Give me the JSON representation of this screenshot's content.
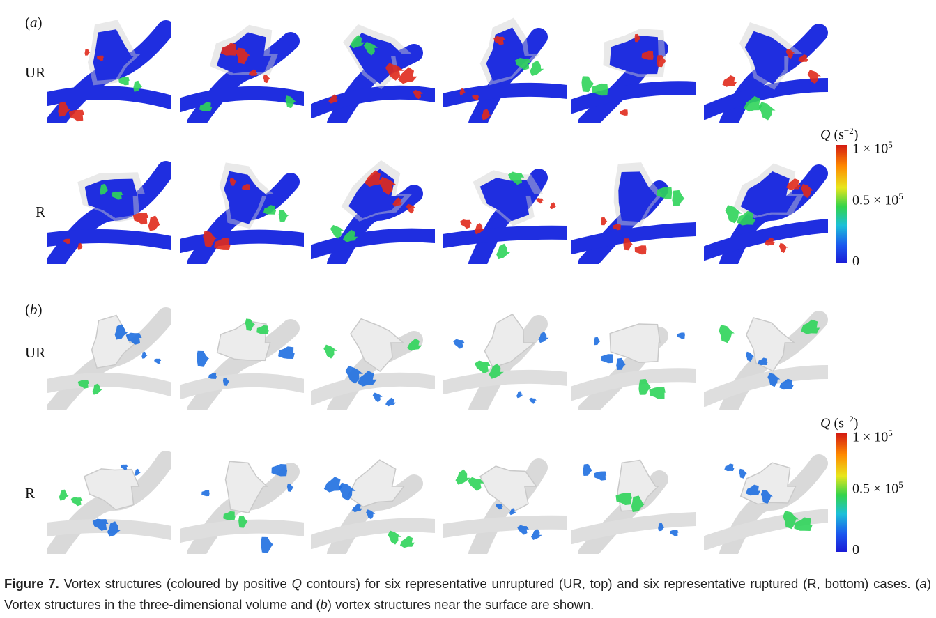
{
  "panels": {
    "a": {
      "label_open": "(",
      "label_letter": "a",
      "label_close": ")",
      "rows": [
        "UR",
        "R"
      ],
      "colorbar": {
        "q_symbol": "Q",
        "unit": "(s",
        "unit_exp": "−2",
        "unit_close": ")",
        "tick_max": "1 × 10",
        "tick_max_exp": "5",
        "tick_mid": "0.5 × 10",
        "tick_mid_exp": "5",
        "tick_min": "0"
      }
    },
    "b": {
      "label_open": "(",
      "label_letter": "b",
      "label_close": ")",
      "rows": [
        "UR",
        "R"
      ],
      "colorbar": {
        "q_symbol": "Q",
        "unit": "(s",
        "unit_exp": "−2",
        "unit_close": ")",
        "tick_max": "1 × 10",
        "tick_max_exp": "5",
        "tick_mid": "0.5 × 10",
        "tick_mid_exp": "5",
        "tick_min": "0"
      }
    }
  },
  "colors": {
    "vortex_blue": "#1f2ee0",
    "vortex_red": "#e02a1c",
    "vortex_green": "#2fd45a",
    "surface_gray": "#e6e6e6",
    "surface_blue": "#1f6fe0"
  },
  "caption": {
    "figure_label": "Figure 7.",
    "text_1": " Vortex structures (coloured by positive ",
    "q_symbol": "Q",
    "text_2": " contours) for six representative unruptured (UR, top) and six representative ruptured (R, bottom) cases. (",
    "a_letter": "a",
    "text_3": ") Vortex structures in the three-dimensional volume and (",
    "b_letter": "b",
    "text_4": ") vortex structures near the surface are shown."
  }
}
